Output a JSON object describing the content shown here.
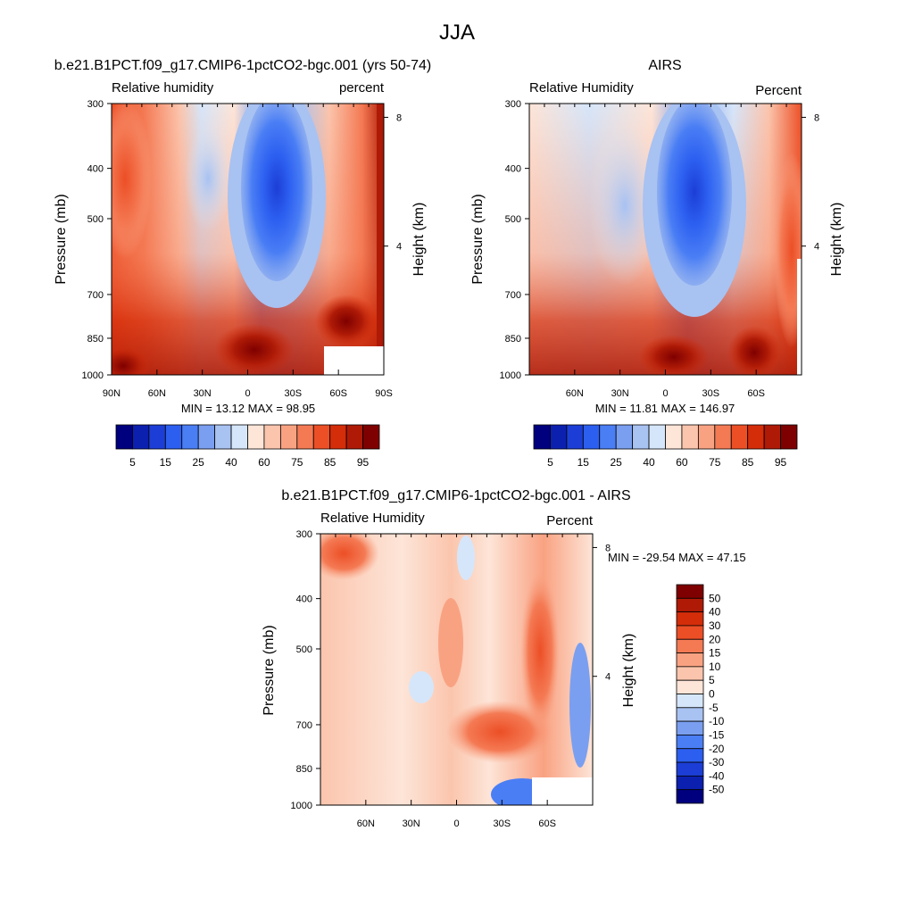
{
  "page_title": "JJA",
  "chart_data": [
    {
      "type": "heatmap",
      "title": "b.e21.B1PCT.f09_g17.CMIP6-1pctCO2-bgc.001 (yrs 50-74)",
      "left_string": "Relative humidity",
      "right_string": "percent",
      "ylabel": "Pressure (mb)",
      "y2label": "Height (km)",
      "y_ticks": [
        "300",
        "400",
        "500",
        "700",
        "850",
        "1000"
      ],
      "y2_ticks": [
        "8",
        "4"
      ],
      "x_ticks": [
        "90N",
        "60N",
        "30N",
        "0",
        "30S",
        "60S",
        "90S"
      ],
      "stats": "MIN = 13.12  MAX = 98.95",
      "colorbar_levels": [
        5,
        10,
        15,
        20,
        25,
        30,
        40,
        50,
        60,
        70,
        75,
        80,
        85,
        90,
        95
      ],
      "colorbar_labels": [
        "5",
        "15",
        "25",
        "40",
        "60",
        "75",
        "85",
        "95"
      ],
      "colors": [
        "#00007f",
        "#0c20b0",
        "#1c3ed6",
        "#2c5ff0",
        "#4a7ef5",
        "#7a9ff0",
        "#a8c2f2",
        "#d6e6fa",
        "#fde5d8",
        "#fbc5ad",
        "#f9a282",
        "#f47a54",
        "#ec4f26",
        "#d42d0a",
        "#ae1a06",
        "#7f0000"
      ]
    },
    {
      "type": "heatmap",
      "title": "AIRS",
      "left_string": "Relative Humidity",
      "right_string": "Percent",
      "ylabel": "Pressure (mb)",
      "y2label": "Height (km)",
      "y_ticks": [
        "300",
        "400",
        "500",
        "700",
        "850",
        "1000"
      ],
      "y2_ticks": [
        "8",
        "4"
      ],
      "x_ticks": [
        "60N",
        "30N",
        "0",
        "30S",
        "60S"
      ],
      "stats": "MIN =  11.81  MAX = 146.97",
      "colorbar_levels": [
        5,
        10,
        15,
        20,
        25,
        30,
        40,
        50,
        60,
        70,
        75,
        80,
        85,
        90,
        95
      ],
      "colorbar_labels": [
        "5",
        "15",
        "25",
        "40",
        "60",
        "75",
        "85",
        "95"
      ],
      "colors": [
        "#00007f",
        "#0c20b0",
        "#1c3ed6",
        "#2c5ff0",
        "#4a7ef5",
        "#7a9ff0",
        "#a8c2f2",
        "#d6e6fa",
        "#fde5d8",
        "#fbc5ad",
        "#f9a282",
        "#f47a54",
        "#ec4f26",
        "#d42d0a",
        "#ae1a06",
        "#7f0000"
      ]
    },
    {
      "type": "heatmap",
      "title": "b.e21.B1PCT.f09_g17.CMIP6-1pctCO2-bgc.001 - AIRS",
      "left_string": "Relative Humidity",
      "right_string": "Percent",
      "ylabel": "Pressure (mb)",
      "y2label": "Height (km)",
      "y_ticks": [
        "300",
        "400",
        "500",
        "700",
        "850",
        "1000"
      ],
      "y2_ticks": [
        "8",
        "4"
      ],
      "x_ticks": [
        "60N",
        "30N",
        "0",
        "30S",
        "60S"
      ],
      "stats": "MIN = -29.54  MAX =  47.15",
      "colorbar_levels": [
        -50,
        -40,
        -30,
        -20,
        -15,
        -10,
        -5,
        0,
        5,
        10,
        15,
        20,
        30,
        40,
        50
      ],
      "colorbar_labels": [
        "50",
        "40",
        "30",
        "20",
        "15",
        "10",
        "5",
        "0",
        "-5",
        "-10",
        "-15",
        "-20",
        "-30",
        "-40",
        "-50"
      ],
      "colors": [
        "#00007f",
        "#0c20b0",
        "#1c3ed6",
        "#2c5ff0",
        "#4a7ef5",
        "#7a9ff0",
        "#a8c2f2",
        "#d6e6fa",
        "#fde5d8",
        "#fbc5ad",
        "#f9a282",
        "#f47a54",
        "#ec4f26",
        "#d42d0a",
        "#ae1a06",
        "#7f0000"
      ]
    }
  ]
}
